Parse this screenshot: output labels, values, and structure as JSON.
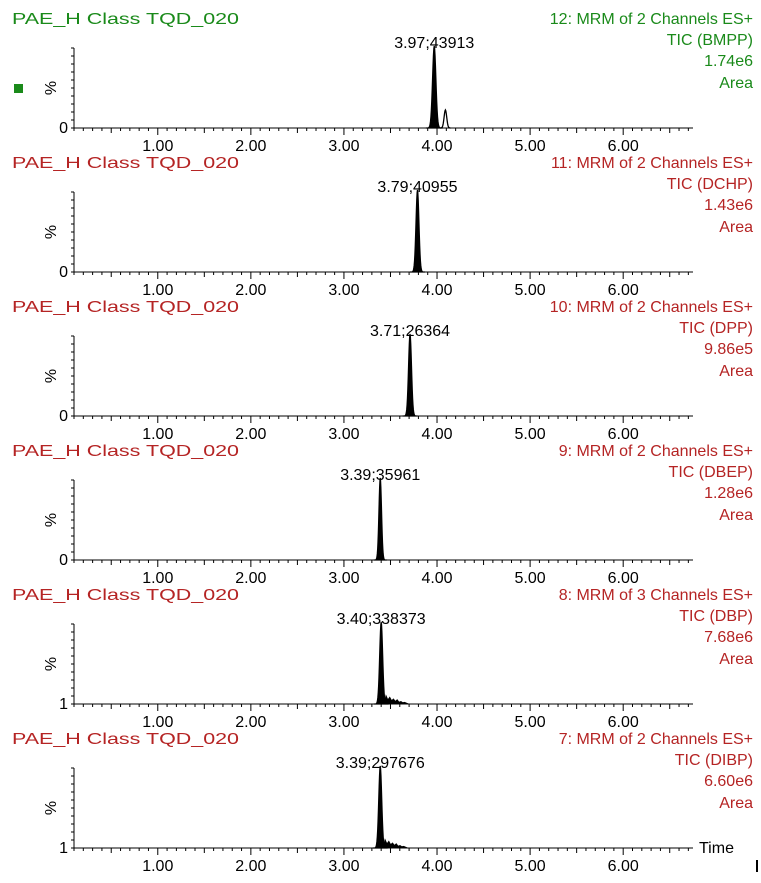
{
  "colors": {
    "active": "#1a8a1a",
    "inactive": "#b52424",
    "trace": "#000000",
    "axis": "#000000"
  },
  "icons": {
    "active_marker": "green-square-marker"
  },
  "chart_data": [
    {
      "type": "line",
      "sample": "PAE_H Class TQD_020",
      "function": "12: MRM of 2 Channels ES+",
      "trace": "TIC (BMPP)",
      "intensity": "1.74e6",
      "mode": "Area",
      "active": true,
      "y_label": "%",
      "y_zero": "0",
      "xlim": [
        0.1,
        6.75
      ],
      "ticks": [
        "1.00",
        "2.00",
        "3.00",
        "4.00",
        "5.00",
        "6.00"
      ],
      "peak": {
        "label": "3.97;43913",
        "rt": 3.97,
        "height": 1.0,
        "width": 0.018
      },
      "extra_peaks": [
        {
          "rt": 4.09,
          "height": 0.22,
          "width": 0.014
        }
      ],
      "tail": false
    },
    {
      "type": "line",
      "sample": "PAE_H Class TQD_020",
      "function": "11: MRM of 2 Channels ES+",
      "trace": "TIC (DCHP)",
      "intensity": "1.43e6",
      "mode": "Area",
      "active": false,
      "y_label": "%",
      "y_zero": "0",
      "xlim": [
        0.1,
        6.75
      ],
      "ticks": [
        "1.00",
        "2.00",
        "3.00",
        "4.00",
        "5.00",
        "6.00"
      ],
      "peak": {
        "label": "3.79;40955",
        "rt": 3.79,
        "height": 1.0,
        "width": 0.016
      },
      "extra_peaks": [],
      "tail": false
    },
    {
      "type": "line",
      "sample": "PAE_H Class TQD_020",
      "function": "10: MRM of 2 Channels ES+",
      "trace": "TIC (DPP)",
      "intensity": "9.86e5",
      "mode": "Area",
      "active": false,
      "y_label": "%",
      "y_zero": "0",
      "xlim": [
        0.1,
        6.75
      ],
      "ticks": [
        "1.00",
        "2.00",
        "3.00",
        "4.00",
        "5.00",
        "6.00"
      ],
      "peak": {
        "label": "3.71;26364",
        "rt": 3.71,
        "height": 1.0,
        "width": 0.016
      },
      "extra_peaks": [],
      "tail": false
    },
    {
      "type": "line",
      "sample": "PAE_H Class TQD_020",
      "function": "9: MRM of 2 Channels ES+",
      "trace": "TIC (DBEP)",
      "intensity": "1.28e6",
      "mode": "Area",
      "active": false,
      "y_label": "%",
      "y_zero": "0",
      "xlim": [
        0.1,
        6.75
      ],
      "ticks": [
        "1.00",
        "2.00",
        "3.00",
        "4.00",
        "5.00",
        "6.00"
      ],
      "peak": {
        "label": "3.39;35961",
        "rt": 3.39,
        "height": 1.0,
        "width": 0.014
      },
      "extra_peaks": [],
      "tail": false
    },
    {
      "type": "line",
      "sample": "PAE_H Class TQD_020",
      "function": "8: MRM of 3 Channels ES+",
      "trace": "TIC (DBP)",
      "intensity": "7.68e6",
      "mode": "Area",
      "active": false,
      "y_label": "%",
      "y_zero": "1",
      "xlim": [
        0.1,
        6.75
      ],
      "ticks": [
        "1.00",
        "2.00",
        "3.00",
        "4.00",
        "5.00",
        "6.00"
      ],
      "peak": {
        "label": "3.40;338373",
        "rt": 3.4,
        "height": 1.0,
        "width": 0.016
      },
      "extra_peaks": [],
      "tail": true
    },
    {
      "type": "line",
      "sample": "PAE_H Class TQD_020",
      "function": "7: MRM of 2 Channels ES+",
      "trace": "TIC (DIBP)",
      "intensity": "6.60e6",
      "mode": "Area",
      "active": false,
      "y_label": "%",
      "y_zero": "1",
      "xlim": [
        0.1,
        6.75
      ],
      "ticks": [
        "1.00",
        "2.00",
        "3.00",
        "4.00",
        "5.00",
        "6.00"
      ],
      "peak": {
        "label": "3.39;297676",
        "rt": 3.39,
        "height": 1.0,
        "width": 0.016
      },
      "extra_peaks": [],
      "tail": true
    }
  ],
  "x_axis_label": "Time"
}
